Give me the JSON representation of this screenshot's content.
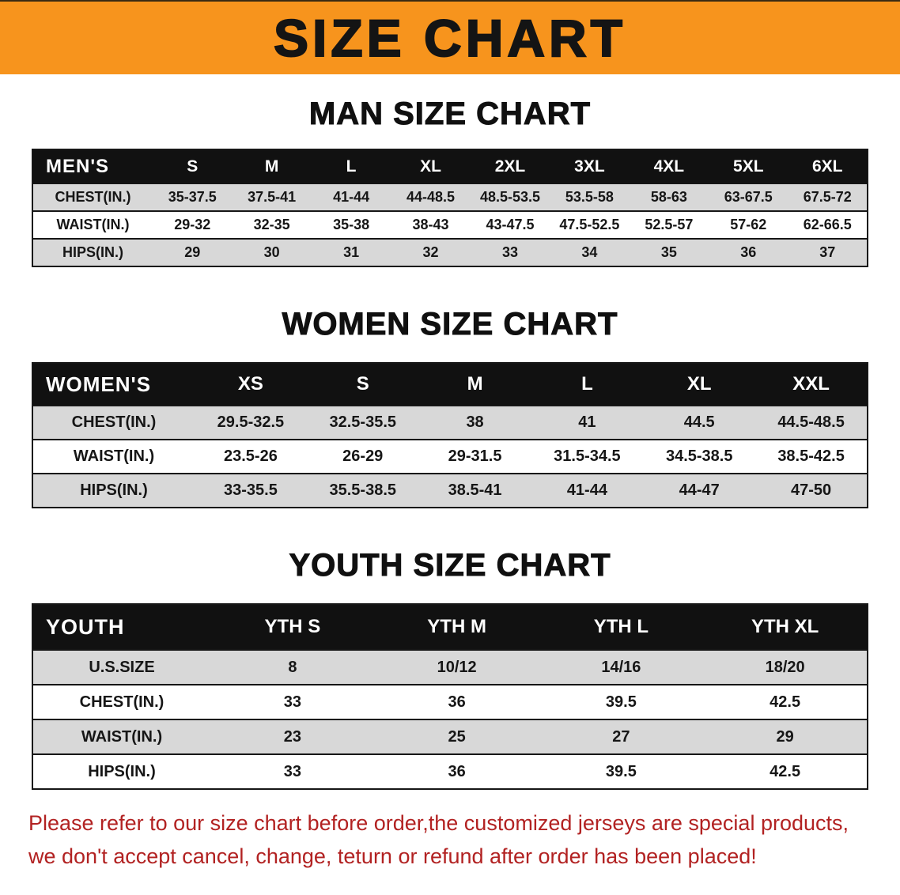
{
  "banner": {
    "title": "SIZE CHART"
  },
  "sections": [
    {
      "key": "men",
      "heading": "MAN SIZE CHART",
      "table": {
        "category": "MEN'S",
        "columns": [
          "S",
          "M",
          "L",
          "XL",
          "2XL",
          "3XL",
          "4XL",
          "5XL",
          "6XL"
        ],
        "rows": [
          {
            "label": "CHEST(IN.)",
            "values": [
              "35-37.5",
              "37.5-41",
              "41-44",
              "44-48.5",
              "48.5-53.5",
              "53.5-58",
              "58-63",
              "63-67.5",
              "67.5-72"
            ]
          },
          {
            "label": "WAIST(IN.)",
            "values": [
              "29-32",
              "32-35",
              "35-38",
              "38-43",
              "43-47.5",
              "47.5-52.5",
              "52.5-57",
              "57-62",
              "62-66.5"
            ]
          },
          {
            "label": "HIPS(IN.)",
            "values": [
              "29",
              "30",
              "31",
              "32",
              "33",
              "34",
              "35",
              "36",
              "37"
            ]
          }
        ]
      }
    },
    {
      "key": "women",
      "heading": "WOMEN SIZE CHART",
      "table": {
        "category": "WOMEN'S",
        "columns": [
          "XS",
          "S",
          "M",
          "L",
          "XL",
          "XXL"
        ],
        "rows": [
          {
            "label": "CHEST(IN.)",
            "values": [
              "29.5-32.5",
              "32.5-35.5",
              "38",
              "41",
              "44.5",
              "44.5-48.5"
            ]
          },
          {
            "label": "WAIST(IN.)",
            "values": [
              "23.5-26",
              "26-29",
              "29-31.5",
              "31.5-34.5",
              "34.5-38.5",
              "38.5-42.5"
            ]
          },
          {
            "label": "HIPS(IN.)",
            "values": [
              "33-35.5",
              "35.5-38.5",
              "38.5-41",
              "41-44",
              "44-47",
              "47-50"
            ]
          }
        ]
      }
    },
    {
      "key": "youth",
      "heading": "YOUTH SIZE CHART",
      "table": {
        "category": "YOUTH",
        "columns": [
          "YTH S",
          "YTH M",
          "YTH L",
          "YTH XL"
        ],
        "rows": [
          {
            "label": "U.S.SIZE",
            "values": [
              "8",
              "10/12",
              "14/16",
              "18/20"
            ]
          },
          {
            "label": "CHEST(IN.)",
            "values": [
              "33",
              "36",
              "39.5",
              "42.5"
            ]
          },
          {
            "label": "WAIST(IN.)",
            "values": [
              "23",
              "25",
              "27",
              "29"
            ]
          },
          {
            "label": "HIPS(IN.)",
            "values": [
              "33",
              "36",
              "39.5",
              "42.5"
            ]
          }
        ]
      }
    }
  ],
  "footer": {
    "line1": "Please refer to our size chart before order,the customized jerseys are special products,",
    "line2": "we don't accept cancel, change, teturn or refund after order has been placed!"
  },
  "colors": {
    "banner_background": "#f7941d",
    "table_header_background": "#111111",
    "table_header_text": "#ffffff",
    "stripe_row_background": "#d8d8d8",
    "footer_text": "#b22222",
    "heading_text": "#101010"
  }
}
